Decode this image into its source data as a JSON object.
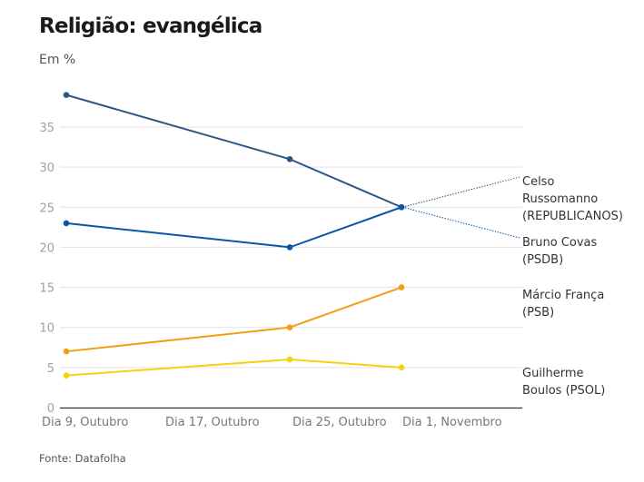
{
  "header": {
    "title": "Religião: evangélica",
    "subtitle": "Em %"
  },
  "footer": {
    "source": "Fonte: Datafolha"
  },
  "chart_data": {
    "type": "line",
    "title": "Religião: evangélica",
    "subtitle": "Em %",
    "xlabel": "",
    "ylabel": "Em %",
    "ylim": [
      0,
      40
    ],
    "yticks": [
      0,
      5,
      10,
      15,
      20,
      25,
      30,
      35
    ],
    "grid": true,
    "x_points": [
      "2020-10-09",
      "2020-10-25",
      "2020-11-02"
    ],
    "x_day_offsets": [
      0,
      16,
      24
    ],
    "xtick_labels": [
      {
        "label": "Dia 9, Outubro",
        "day_offset": 0
      },
      {
        "label": "Dia 17, Outubro",
        "day_offset": 8
      },
      {
        "label": "Dia 25, Outubro",
        "day_offset": 16
      },
      {
        "label": "Dia 1, Novembro",
        "day_offset": 23
      }
    ],
    "series": [
      {
        "name": "Celso Russomanno (REPUBLICANOS)",
        "label_lines": [
          "Celso",
          "Russomanno",
          "(REPUBLICANOS)"
        ],
        "color": "#2a5783",
        "values": [
          39,
          31,
          25
        ]
      },
      {
        "name": "Bruno Covas (PSDB)",
        "label_lines": [
          "Bruno Covas",
          "(PSDB)"
        ],
        "color": "#0b56a8",
        "values": [
          23,
          20,
          25
        ]
      },
      {
        "name": "Márcio França (PSB)",
        "label_lines": [
          "Márcio França",
          "(PSB)"
        ],
        "color": "#f29d12",
        "values": [
          7,
          10,
          15
        ]
      },
      {
        "name": "Guilherme Boulos (PSOL)",
        "label_lines": [
          "Guilherme",
          "Boulos (PSOL)"
        ],
        "color": "#f6d20e",
        "values": [
          4,
          6,
          5
        ]
      }
    ],
    "legend": "direct-labels-right"
  }
}
